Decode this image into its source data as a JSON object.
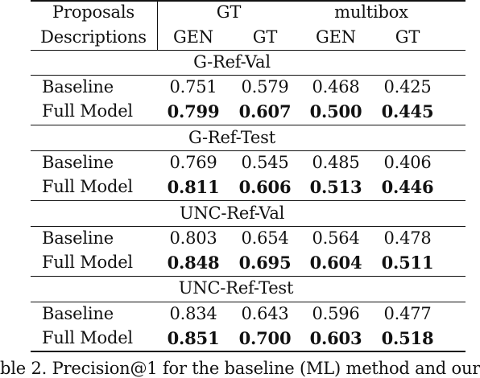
{
  "table": {
    "header_row1": {
      "label": "Proposals",
      "gt_group": "GT",
      "multibox_group": "multibox"
    },
    "header_row2": {
      "label": "Descriptions",
      "col1": "GEN",
      "col2": "GT",
      "col3": "GEN",
      "col4": "GT"
    },
    "sections": [
      {
        "title": "G-Ref-Val",
        "rows": [
          {
            "name": "Baseline",
            "values": [
              "0.751",
              "0.579",
              "0.468",
              "0.425"
            ]
          },
          {
            "name": "Full Model",
            "values": [
              "0.799",
              "0.607",
              "0.500",
              "0.445"
            ]
          }
        ]
      },
      {
        "title": "G-Ref-Test",
        "rows": [
          {
            "name": "Baseline",
            "values": [
              "0.769",
              "0.545",
              "0.485",
              "0.406"
            ]
          },
          {
            "name": "Full Model",
            "values": [
              "0.811",
              "0.606",
              "0.513",
              "0.446"
            ]
          }
        ]
      },
      {
        "title": "UNC-Ref-Val",
        "rows": [
          {
            "name": "Baseline",
            "values": [
              "0.803",
              "0.654",
              "0.564",
              "0.478"
            ]
          },
          {
            "name": "Full Model",
            "values": [
              "0.848",
              "0.695",
              "0.604",
              "0.511"
            ]
          }
        ]
      },
      {
        "title": "UNC-Ref-Test",
        "rows": [
          {
            "name": "Baseline",
            "values": [
              "0.834",
              "0.643",
              "0.596",
              "0.477"
            ]
          },
          {
            "name": "Full Model",
            "values": [
              "0.851",
              "0.700",
              "0.603",
              "0.518"
            ]
          }
        ]
      }
    ]
  },
  "caption": "ble 2. Precision@1 for the baseline (ML) method and our"
}
